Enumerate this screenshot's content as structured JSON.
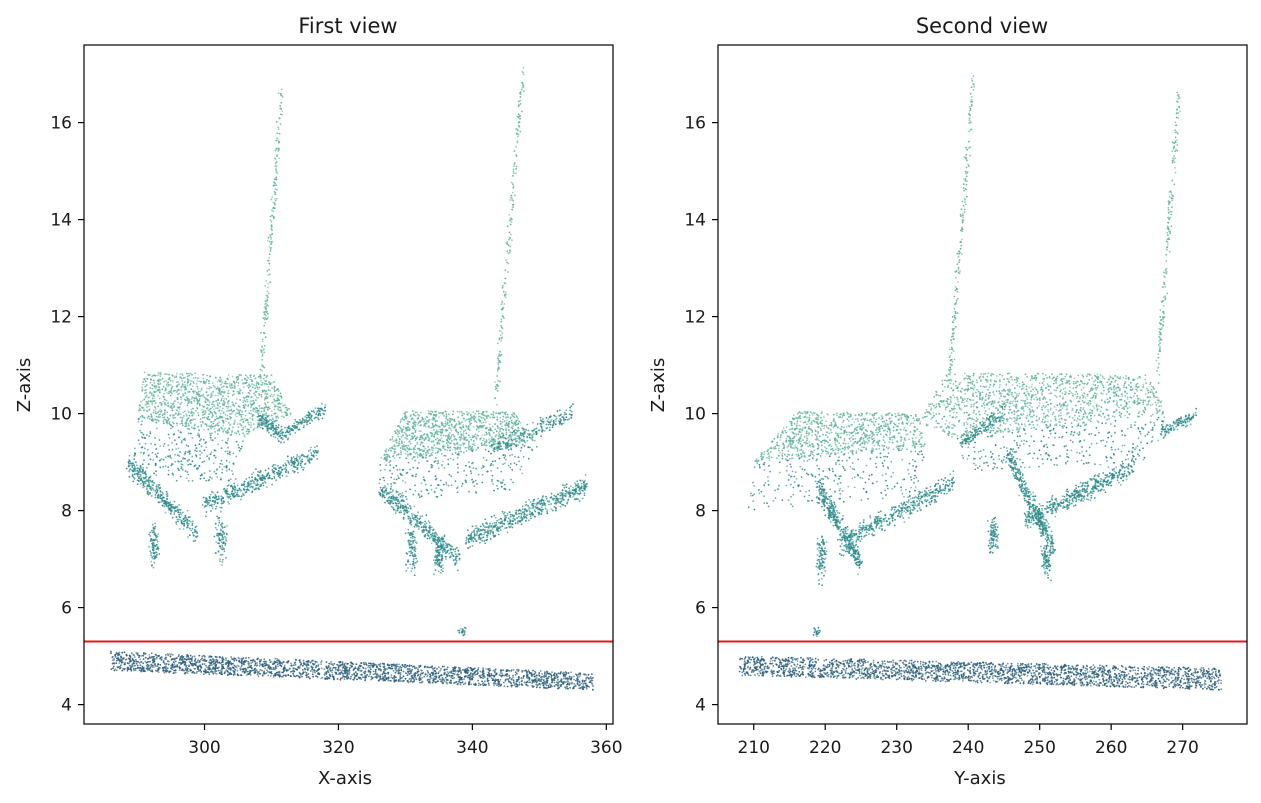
{
  "colors": {
    "background": "#ffffff",
    "axes_frame": "#000000",
    "threshold_line": "#e31a1c",
    "points_light": "#5fb39a",
    "points_mid": "#2e8b8b",
    "points_dark": "#2c5f7a"
  },
  "chart_data": [
    {
      "type": "scatter",
      "title": "First view",
      "xlabel": "X-axis",
      "ylabel": "Z-axis",
      "xlim": [
        282,
        361
      ],
      "ylim": [
        3.6,
        17.6
      ],
      "xticks": [
        300,
        320,
        340,
        360
      ],
      "yticks": [
        4,
        6,
        8,
        10,
        12,
        14,
        16
      ],
      "grid": false,
      "threshold_line": {
        "y": 5.3
      },
      "series": [
        {
          "kind": "poly",
          "color": "points_dark",
          "n": 2400,
          "poly": [
            [
              286,
              4.7
            ],
            [
              286,
              5.1
            ],
            [
              358,
              4.65
            ],
            [
              358,
              4.3
            ]
          ]
        },
        {
          "kind": "poly",
          "color": "points_light",
          "n": 1200,
          "poly": [
            [
              291,
              10.85
            ],
            [
              310,
              10.8
            ],
            [
              313,
              10.0
            ],
            [
              306,
              9.5
            ],
            [
              290,
              9.9
            ]
          ]
        },
        {
          "kind": "poly",
          "color": "points_mid",
          "n": 300,
          "poly": [
            [
              290,
              9.9
            ],
            [
              306,
              9.5
            ],
            [
              304,
              8.6
            ],
            [
              289,
              8.6
            ]
          ]
        },
        {
          "kind": "poly",
          "color": "points_light",
          "n": 1000,
          "poly": [
            [
              330,
              10.05
            ],
            [
              346,
              10.05
            ],
            [
              350,
              9.4
            ],
            [
              326,
              9.0
            ]
          ]
        },
        {
          "kind": "poly",
          "color": "points_mid",
          "n": 250,
          "poly": [
            [
              326,
              9.0
            ],
            [
              350,
              9.4
            ],
            [
              346,
              8.4
            ],
            [
              327,
              8.2
            ]
          ]
        },
        {
          "kind": "band",
          "color": "points_mid",
          "n": 350,
          "from": [
            288.5,
            9.0
          ],
          "to": [
            299,
            7.5
          ],
          "width": 0.3
        },
        {
          "kind": "band",
          "color": "points_mid",
          "n": 450,
          "from": [
            300,
            8.1
          ],
          "to": [
            317,
            9.2
          ],
          "width": 0.3
        },
        {
          "kind": "band",
          "color": "points_mid",
          "n": 150,
          "from": [
            308,
            9.9
          ],
          "to": [
            312,
            9.5
          ],
          "width": 0.25
        },
        {
          "kind": "band",
          "color": "points_mid",
          "n": 150,
          "from": [
            312,
            9.6
          ],
          "to": [
            318,
            10.1
          ],
          "width": 0.2
        },
        {
          "kind": "band",
          "color": "points_mid",
          "n": 400,
          "from": [
            326,
            8.5
          ],
          "to": [
            338,
            7.0
          ],
          "width": 0.3
        },
        {
          "kind": "band",
          "color": "points_mid",
          "n": 550,
          "from": [
            339,
            7.4
          ],
          "to": [
            357,
            8.5
          ],
          "width": 0.3
        },
        {
          "kind": "band",
          "color": "points_mid",
          "n": 200,
          "from": [
            343,
            9.3
          ],
          "to": [
            355,
            10.0
          ],
          "width": 0.25
        },
        {
          "kind": "blob",
          "color": "points_mid",
          "n": 90,
          "cx": 292.5,
          "cy": 7.3,
          "rx": 1.0,
          "ry": 0.6
        },
        {
          "kind": "blob",
          "color": "points_mid",
          "n": 90,
          "cx": 302.5,
          "cy": 7.4,
          "rx": 1.2,
          "ry": 0.6
        },
        {
          "kind": "blob",
          "color": "points_mid",
          "n": 90,
          "cx": 331.0,
          "cy": 7.2,
          "rx": 1.2,
          "ry": 0.7
        },
        {
          "kind": "blob",
          "color": "points_mid",
          "n": 90,
          "cx": 335.0,
          "cy": 7.0,
          "rx": 1.0,
          "ry": 0.5
        },
        {
          "kind": "band",
          "color": "points_light",
          "n": 180,
          "from": [
            308.5,
            10.9
          ],
          "to": [
            311.5,
            16.6
          ],
          "width": 0.35
        },
        {
          "kind": "band",
          "color": "points_light",
          "n": 180,
          "from": [
            343.5,
            10.3
          ],
          "to": [
            347.5,
            17.0
          ],
          "width": 0.35
        },
        {
          "kind": "blob",
          "color": "points_mid",
          "n": 20,
          "cx": 338.5,
          "cy": 5.5,
          "rx": 0.8,
          "ry": 0.15
        }
      ]
    },
    {
      "type": "scatter",
      "title": "Second view",
      "xlabel": "Y-axis",
      "ylabel": "Z-axis",
      "xlim": [
        205,
        279
      ],
      "ylim": [
        3.6,
        17.6
      ],
      "xticks": [
        210,
        220,
        230,
        240,
        250,
        260,
        270
      ],
      "yticks": [
        4,
        6,
        8,
        10,
        12,
        14,
        16
      ],
      "grid": false,
      "threshold_line": {
        "y": 5.3
      },
      "series": [
        {
          "kind": "poly",
          "color": "points_dark",
          "n": 2400,
          "poly": [
            [
              208,
              4.6
            ],
            [
              208,
              5.0
            ],
            [
              275.5,
              4.75
            ],
            [
              275.5,
              4.3
            ]
          ]
        },
        {
          "kind": "poly",
          "color": "points_light",
          "n": 900,
          "poly": [
            [
              216,
              10.05
            ],
            [
              233,
              10.0
            ],
            [
              234,
              9.3
            ],
            [
              210,
              9.0
            ]
          ]
        },
        {
          "kind": "poly",
          "color": "points_mid",
          "n": 250,
          "poly": [
            [
              210,
              9.0
            ],
            [
              234,
              9.3
            ],
            [
              233,
              8.3
            ],
            [
              209,
              8.0
            ]
          ]
        },
        {
          "kind": "poly",
          "color": "points_light",
          "n": 1300,
          "poly": [
            [
              237,
              10.85
            ],
            [
              265,
              10.8
            ],
            [
              268,
              10.0
            ],
            [
              238,
              9.5
            ],
            [
              233,
              9.8
            ]
          ]
        },
        {
          "kind": "poly",
          "color": "points_mid",
          "n": 300,
          "poly": [
            [
              238,
              9.5
            ],
            [
              268,
              10.0
            ],
            [
              266,
              9.0
            ],
            [
              240,
              8.8
            ]
          ]
        },
        {
          "kind": "band",
          "color": "points_mid",
          "n": 350,
          "from": [
            219,
            8.5
          ],
          "to": [
            225,
            6.9
          ],
          "width": 0.35
        },
        {
          "kind": "band",
          "color": "points_mid",
          "n": 450,
          "from": [
            222,
            7.3
          ],
          "to": [
            238,
            8.6
          ],
          "width": 0.3
        },
        {
          "kind": "band",
          "color": "points_mid",
          "n": 350,
          "from": [
            245.5,
            9.2
          ],
          "to": [
            252,
            7.2
          ],
          "width": 0.35
        },
        {
          "kind": "band",
          "color": "points_mid",
          "n": 500,
          "from": [
            248,
            7.8
          ],
          "to": [
            263,
            8.9
          ],
          "width": 0.3
        },
        {
          "kind": "band",
          "color": "points_mid",
          "n": 150,
          "from": [
            239,
            9.4
          ],
          "to": [
            245,
            10.0
          ],
          "width": 0.25
        },
        {
          "kind": "band",
          "color": "points_mid",
          "n": 120,
          "from": [
            267,
            9.6
          ],
          "to": [
            272,
            10.0
          ],
          "width": 0.2
        },
        {
          "kind": "blob",
          "color": "points_mid",
          "n": 90,
          "cx": 219.5,
          "cy": 7.0,
          "rx": 1.0,
          "ry": 0.8
        },
        {
          "kind": "blob",
          "color": "points_mid",
          "n": 90,
          "cx": 243.5,
          "cy": 7.5,
          "rx": 1.0,
          "ry": 0.5
        },
        {
          "kind": "blob",
          "color": "points_mid",
          "n": 90,
          "cx": 251.0,
          "cy": 7.0,
          "rx": 1.0,
          "ry": 0.5
        },
        {
          "kind": "band",
          "color": "points_light",
          "n": 180,
          "from": [
            237.5,
            10.9
          ],
          "to": [
            240.8,
            17.0
          ],
          "width": 0.35
        },
        {
          "kind": "band",
          "color": "points_light",
          "n": 180,
          "from": [
            266.5,
            10.8
          ],
          "to": [
            269.5,
            16.6
          ],
          "width": 0.35
        },
        {
          "kind": "blob",
          "color": "points_mid",
          "n": 20,
          "cx": 219.0,
          "cy": 5.5,
          "rx": 0.8,
          "ry": 0.15
        }
      ]
    }
  ]
}
